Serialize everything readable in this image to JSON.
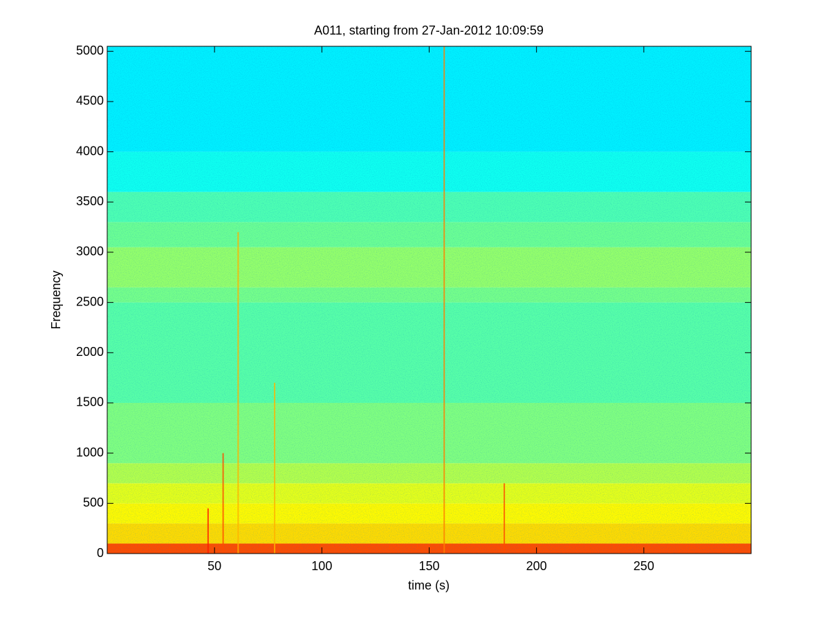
{
  "chart_data": {
    "type": "spectrogram",
    "title": "A011, starting from 27-Jan-2012 10:09:59",
    "xlabel": "time (s)",
    "ylabel": "Frequency",
    "xlim": [
      0,
      300
    ],
    "ylim": [
      0,
      5050
    ],
    "xticks": [
      50,
      100,
      150,
      200,
      250
    ],
    "yticks": [
      0,
      500,
      1000,
      1500,
      2000,
      2500,
      3000,
      3500,
      4000,
      4500,
      5000
    ],
    "colormap": "jet",
    "clim": [
      0,
      1
    ],
    "freq_bins": [
      0,
      100,
      300,
      500,
      700,
      900,
      1500,
      2500,
      2650,
      3050,
      3300,
      3600,
      4000,
      5050
    ],
    "intensity": [
      0.8,
      0.66,
      0.63,
      0.6,
      0.55,
      0.5,
      0.46,
      0.49,
      0.52,
      0.48,
      0.45,
      0.39,
      0.36
    ],
    "streaks": {
      "x": [
        47,
        54,
        61,
        78,
        157,
        185
      ],
      "y": [
        450,
        1000,
        3200,
        1700,
        5050,
        700
      ],
      "intensity": [
        0.85,
        0.8,
        0.7,
        0.7,
        0.75,
        0.8
      ]
    }
  }
}
